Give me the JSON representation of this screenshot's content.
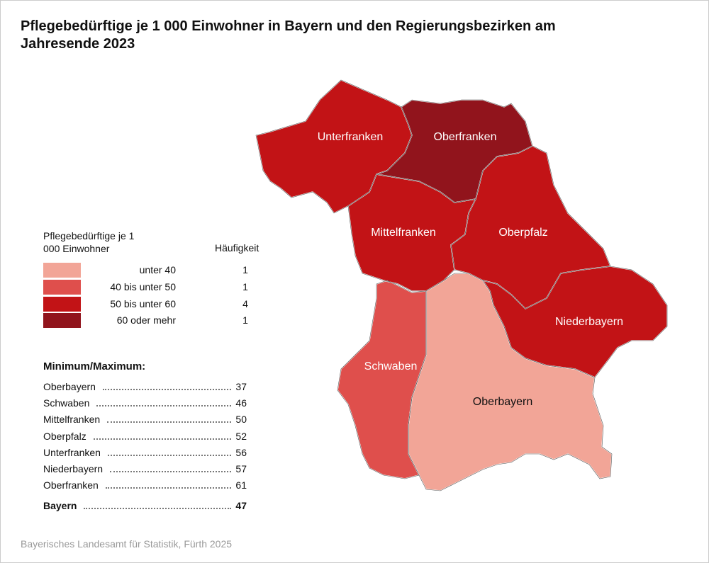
{
  "header": {
    "title": "Pflegebedürftige je 1 000 Einwohner in Bayern und den Regierungsbezirken am Jahresende 2023"
  },
  "legend": {
    "title": "Pflegebedürftige je 1 000 Einwohner",
    "count_header": "Häufigkeit",
    "classes": [
      {
        "label": "unter 40",
        "color": "#f2a597",
        "count": 1
      },
      {
        "label": "40 bis unter 50",
        "color": "#df4f4c",
        "count": 1
      },
      {
        "label": "50 bis unter 60",
        "color": "#c21316",
        "count": 4
      },
      {
        "label": "60 oder mehr",
        "color": "#91141c",
        "count": 1
      }
    ]
  },
  "minmax": {
    "title": "Minimum/Maximum:",
    "rows": [
      {
        "name": "Oberbayern",
        "value": 37,
        "color": "#f2a597"
      },
      {
        "name": "Schwaben",
        "value": 46,
        "color": "#df4f4c"
      },
      {
        "name": "Mittelfranken",
        "value": 50,
        "color": "#c21316"
      },
      {
        "name": "Oberpfalz",
        "value": 52,
        "color": "#c21316"
      },
      {
        "name": "Unterfranken",
        "value": 56,
        "color": "#c21316"
      },
      {
        "name": "Niederbayern",
        "value": 57,
        "color": "#c21316"
      },
      {
        "name": "Oberfranken",
        "value": 61,
        "color": "#91141c"
      }
    ],
    "total": {
      "name": "Bayern",
      "value": 47
    }
  },
  "source": "Bayerisches Landesamt für Statistik, Fürth 2025"
}
